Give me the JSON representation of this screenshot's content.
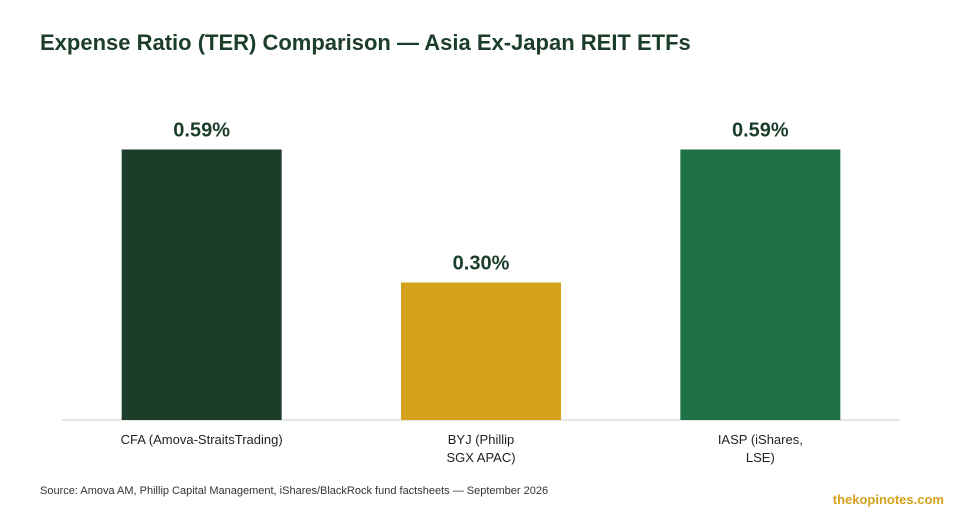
{
  "chart_data": {
    "type": "bar",
    "title": "Expense Ratio (TER) Comparison — Asia Ex-Japan REIT ETFs",
    "categories": [
      [
        "CFA (Amova-StraitsTrading)"
      ],
      [
        "BYJ (Phillip",
        "SGX APAC)"
      ],
      [
        "IASP (iShares,",
        "LSE)"
      ]
    ],
    "values": [
      0.59,
      0.3,
      0.59
    ],
    "value_labels": [
      "0.59%",
      "0.30%",
      "0.59%"
    ],
    "colors": [
      "#1b3d2a",
      "#d4a21a",
      "#1f7045"
    ],
    "ylim": [
      0,
      0.65
    ],
    "grid": false,
    "xlabel": "",
    "ylabel": ""
  },
  "footer": {
    "source": "Source: Amova AM, Phillip Capital Management, iShares/BlackRock fund factsheets — September 2026",
    "brand": "thekopinotes.com"
  }
}
